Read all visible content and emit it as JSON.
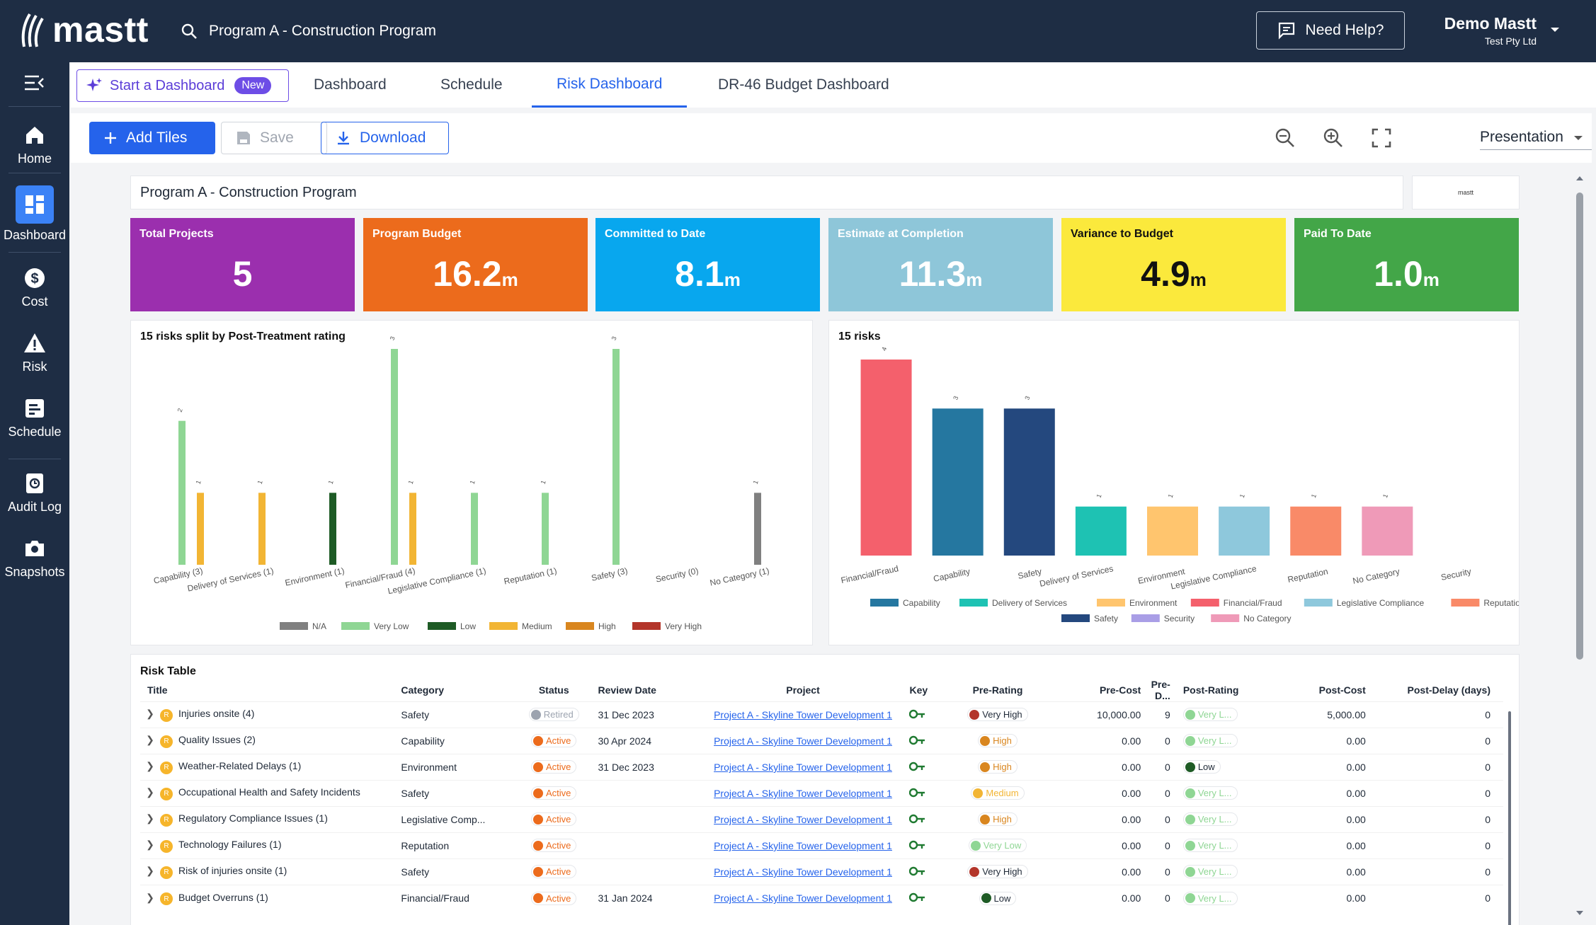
{
  "app": {
    "brand": "mastt",
    "search_text": "Program A - Construction Program",
    "help_label": "Need Help?",
    "user_name": "Demo Mastt",
    "user_company": "Test Pty Ltd"
  },
  "sidebar": {
    "items": [
      {
        "label": "Home",
        "icon": "home-icon"
      },
      {
        "label": "Dashboard",
        "icon": "dashboard-icon"
      },
      {
        "label": "Cost",
        "icon": "dollar-icon"
      },
      {
        "label": "Risk",
        "icon": "warning-icon"
      },
      {
        "label": "Schedule",
        "icon": "schedule-icon"
      },
      {
        "label": "Audit Log",
        "icon": "history-icon"
      },
      {
        "label": "Snapshots",
        "icon": "camera-icon"
      }
    ]
  },
  "tabs": {
    "start_label": "Start a Dashboard",
    "new_badge": "New",
    "items": [
      "Dashboard",
      "Schedule",
      "Risk Dashboard",
      "DR-46 Budget Dashboard"
    ]
  },
  "toolbar": {
    "add_tiles": "Add Tiles",
    "save": "Save",
    "download": "Download",
    "view_mode": "Presentation"
  },
  "dashboard": {
    "title": "Program A - Construction Program",
    "logo_text": "mastt"
  },
  "kpis": [
    {
      "label": "Total Projects",
      "value": "5",
      "unit": "",
      "color": "#9b2fae"
    },
    {
      "label": "Program Budget",
      "value": "16.2",
      "unit": "m",
      "color": "#ec6b1c"
    },
    {
      "label": "Committed to Date",
      "value": "8.1",
      "unit": "m",
      "color": "#08a7ee"
    },
    {
      "label": "Estimate at Completion",
      "value": "11.3",
      "unit": "m",
      "color": "#8ec6d9"
    },
    {
      "label": "Variance to Budget",
      "value": "4.9",
      "unit": "m",
      "color": "#fbe93c"
    },
    {
      "label": "Paid To Date",
      "value": "1.0",
      "unit": "m",
      "color": "#43a648"
    }
  ],
  "chart_data": [
    {
      "type": "bar",
      "title": "15 risks split by Post-Treatment rating",
      "categories": [
        "Capability (3)",
        "Delivery of Services (1)",
        "Environment (1)",
        "Financial/Fraud (4)",
        "Legislative Compliance (1)",
        "Reputation (1)",
        "Safety (3)",
        "Security (0)",
        "No Category (1)"
      ],
      "series": [
        {
          "name": "N/A",
          "color": "#808080",
          "values": [
            0,
            0,
            0,
            0,
            0,
            0,
            0,
            0,
            1
          ]
        },
        {
          "name": "Very Low",
          "color": "#8fd694",
          "values": [
            2,
            0,
            0,
            3,
            1,
            1,
            3,
            0,
            0
          ]
        },
        {
          "name": "Low",
          "color": "#1e5b25",
          "values": [
            0,
            0,
            1,
            0,
            0,
            0,
            0,
            0,
            0
          ]
        },
        {
          "name": "Medium",
          "color": "#f2b534",
          "values": [
            1,
            1,
            0,
            1,
            0,
            0,
            0,
            0,
            0
          ]
        },
        {
          "name": "High",
          "color": "#d9861f",
          "values": [
            0,
            0,
            0,
            0,
            0,
            0,
            0,
            0,
            0
          ]
        },
        {
          "name": "Very High",
          "color": "#b3352a",
          "values": [
            0,
            0,
            0,
            0,
            0,
            0,
            0,
            0,
            0
          ]
        }
      ],
      "ylim": [
        0,
        3
      ]
    },
    {
      "type": "bar",
      "title": "15 risks",
      "categories": [
        "Financial/Fraud",
        "Capability",
        "Safety",
        "Delivery of Services",
        "Environment",
        "Legislative Compliance",
        "Reputation",
        "No Category",
        "Security"
      ],
      "values": [
        4,
        3,
        3,
        1,
        1,
        1,
        1,
        1,
        0
      ],
      "colors": [
        "#f4606c",
        "#2577a0",
        "#24487e",
        "#1ec2b3",
        "#ffc56e",
        "#8ec8dc",
        "#f98a68",
        "#ef9ab8",
        "#cccccc"
      ],
      "legend": [
        {
          "name": "Capability",
          "color": "#2577a0"
        },
        {
          "name": "Delivery of Services",
          "color": "#1ec2b3"
        },
        {
          "name": "Environment",
          "color": "#ffc56e"
        },
        {
          "name": "Financial/Fraud",
          "color": "#f4606c"
        },
        {
          "name": "Legislative Compliance",
          "color": "#8ec8dc"
        },
        {
          "name": "Reputation",
          "color": "#f98a68"
        },
        {
          "name": "Safety",
          "color": "#24487e"
        },
        {
          "name": "Security",
          "color": "#a99ee6"
        },
        {
          "name": "No Category",
          "color": "#ef9ab8"
        }
      ],
      "ylim": [
        0,
        4
      ]
    }
  ],
  "risk_table": {
    "title": "Risk Table",
    "columns": [
      "Title",
      "Category",
      "Status",
      "Review Date",
      "Project",
      "Key",
      "Pre-Rating",
      "Pre-Cost",
      "Pre-D...",
      "Post-Rating",
      "Post-Cost",
      "Post-Delay (days)"
    ],
    "rows": [
      {
        "badge": "R",
        "title": "Injuries onsite  (4)",
        "category": "Safety",
        "status": "Retired",
        "status_color": "#9ca3af",
        "review": "31 Dec 2023",
        "project": "Project A - Skyline Tower Development 1",
        "pre": "Very High",
        "pre_color": "#b3352a",
        "pre_cost": "10,000.00",
        "pre_d": "9",
        "post": "Very L...",
        "post_color": "#8fd694",
        "post_cost": "5,000.00",
        "post_delay": "0"
      },
      {
        "badge": "R",
        "title": "Quality Issues  (2)",
        "category": "Capability",
        "status": "Active",
        "status_color": "#ec6b1c",
        "review": "30 Apr 2024",
        "project": "Project A - Skyline Tower Development 1",
        "pre": "High",
        "pre_color": "#d9861f",
        "pre_cost": "0.00",
        "pre_d": "0",
        "post": "Very L...",
        "post_color": "#8fd694",
        "post_cost": "0.00",
        "post_delay": "0"
      },
      {
        "badge": "R",
        "title": "Weather-Related Delays  (1)",
        "category": "Environment",
        "status": "Active",
        "status_color": "#ec6b1c",
        "review": "31 Dec 2023",
        "project": "Project A - Skyline Tower Development 1",
        "pre": "High",
        "pre_color": "#d9861f",
        "pre_cost": "0.00",
        "pre_d": "0",
        "post": "Low",
        "post_color": "#1e5b25",
        "post_cost": "0.00",
        "post_delay": "0"
      },
      {
        "badge": "R",
        "title": "Occupational Health and Safety Incidents",
        "category": "Safety",
        "status": "Active",
        "status_color": "#ec6b1c",
        "review": "",
        "project": "Project A - Skyline Tower Development 1",
        "pre": "Medium",
        "pre_color": "#f2b534",
        "pre_cost": "0.00",
        "pre_d": "0",
        "post": "Very L...",
        "post_color": "#8fd694",
        "post_cost": "0.00",
        "post_delay": "0"
      },
      {
        "badge": "R",
        "title": "Regulatory Compliance Issues  (1)",
        "category": "Legislative Comp...",
        "status": "Active",
        "status_color": "#ec6b1c",
        "review": "",
        "project": "Project A - Skyline Tower Development 1",
        "pre": "High",
        "pre_color": "#d9861f",
        "pre_cost": "0.00",
        "pre_d": "0",
        "post": "Very L...",
        "post_color": "#8fd694",
        "post_cost": "0.00",
        "post_delay": "0"
      },
      {
        "badge": "R",
        "title": "Technology Failures  (1)",
        "category": "Reputation",
        "status": "Active",
        "status_color": "#ec6b1c",
        "review": "",
        "project": "Project A - Skyline Tower Development 1",
        "pre": "Very Low",
        "pre_color": "#8fd694",
        "pre_cost": "0.00",
        "pre_d": "0",
        "post": "Very L...",
        "post_color": "#8fd694",
        "post_cost": "0.00",
        "post_delay": "0"
      },
      {
        "badge": "R",
        "title": "Risk of injuries onsite  (1)",
        "category": "Safety",
        "status": "Active",
        "status_color": "#ec6b1c",
        "review": "",
        "project": "Project A - Skyline Tower Development 1",
        "pre": "Very High",
        "pre_color": "#b3352a",
        "pre_cost": "0.00",
        "pre_d": "0",
        "post": "Very L...",
        "post_color": "#8fd694",
        "post_cost": "0.00",
        "post_delay": "0"
      },
      {
        "badge": "R",
        "title": "Budget Overruns  (1)",
        "category": "Financial/Fraud",
        "status": "Active",
        "status_color": "#ec6b1c",
        "review": "31 Jan 2024",
        "project": "Project A - Skyline Tower Development 1",
        "pre": "Low",
        "pre_color": "#1e5b25",
        "pre_cost": "0.00",
        "pre_d": "0",
        "post": "Very L...",
        "post_color": "#8fd694",
        "post_cost": "0.00",
        "post_delay": "0"
      }
    ]
  }
}
